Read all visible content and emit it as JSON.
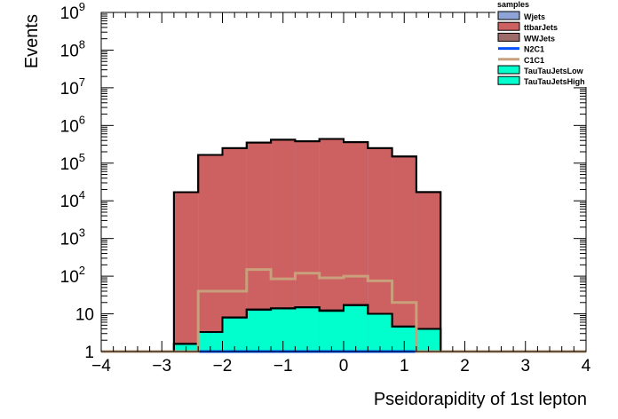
{
  "chart_data": {
    "type": "stacked-histogram",
    "xlabel": "Pseidorapidity of 1st lepton",
    "ylabel": "Events",
    "xlim": [
      -4,
      4
    ],
    "ylim": [
      1,
      1000000000
    ],
    "yscale": "log",
    "x_ticks": [
      "−4",
      "−3",
      "−2",
      "−1",
      "0",
      "1",
      "2",
      "3",
      "4"
    ],
    "y_ticks": [
      {
        "value": 1,
        "base": "1",
        "exp": ""
      },
      {
        "value": 10,
        "base": "10",
        "exp": ""
      },
      {
        "value": 100,
        "base": "10",
        "exp": "2"
      },
      {
        "value": 1000,
        "base": "10",
        "exp": "3"
      },
      {
        "value": 10000,
        "base": "10",
        "exp": "4"
      },
      {
        "value": 100000,
        "base": "10",
        "exp": "5"
      },
      {
        "value": 1000000,
        "base": "10",
        "exp": "6"
      },
      {
        "value": 10000000,
        "base": "10",
        "exp": "7"
      },
      {
        "value": 100000000,
        "base": "10",
        "exp": "8"
      },
      {
        "value": 1000000000,
        "base": "10",
        "exp": "9"
      }
    ],
    "bin_edges": [
      -4,
      -3.6,
      -3.2,
      -2.8,
      -2.4,
      -2.0,
      -1.6,
      -1.2,
      -0.8,
      -0.4,
      0,
      0.4,
      0.8,
      1.2,
      1.6,
      2.0,
      2.4,
      2.8,
      3.2,
      3.6,
      4
    ],
    "stacked_series": [
      {
        "name": "TauTauJetsHigh",
        "color": "#00ffcc",
        "values": [
          0,
          0,
          0,
          1.6,
          3.3,
          8,
          13,
          14,
          15,
          12,
          17,
          10,
          4.6,
          4,
          1,
          0,
          0,
          0,
          0,
          0
        ]
      },
      {
        "name": "TauTauJetsLow",
        "color": "#00ffcc",
        "values": [
          0,
          0,
          0,
          0,
          0,
          0,
          0,
          0,
          0,
          0.3,
          0.1,
          0,
          0,
          0,
          0,
          0,
          0,
          0,
          0,
          0
        ]
      },
      {
        "name": "WWJets",
        "color": "#9e6b6b",
        "values": [
          0,
          0,
          0,
          0,
          0,
          0,
          0,
          0,
          0,
          0,
          0,
          0,
          0,
          0,
          0,
          0,
          0,
          0,
          0,
          0
        ]
      },
      {
        "name": "ttbarJets",
        "color": "#cd6060",
        "values": [
          0,
          0,
          0,
          17000,
          165000,
          250000,
          350000,
          420000,
          380000,
          440000,
          360000,
          250000,
          150000,
          17000,
          0,
          0,
          0,
          0,
          0,
          0
        ]
      },
      {
        "name": "Wjets",
        "color": "#8ea3d6",
        "values": [
          0,
          0,
          0,
          0,
          0,
          0,
          0,
          0,
          0,
          0,
          0,
          0,
          0,
          0,
          0,
          0,
          0,
          0,
          0,
          0
        ]
      }
    ],
    "line_series": [
      {
        "name": "N2C1",
        "color": "#0050ff",
        "values": [
          0,
          0,
          0,
          0,
          1,
          1,
          1,
          1,
          1,
          1,
          1,
          1,
          1,
          1,
          0,
          0,
          0,
          0,
          0,
          0
        ]
      },
      {
        "name": "C1C1",
        "color": "#c8a07c",
        "values": [
          1,
          1,
          1,
          1,
          40,
          40,
          150,
          85,
          120,
          90,
          100,
          75,
          20,
          1,
          1,
          1,
          1,
          1,
          1,
          1
        ]
      }
    ],
    "legend": {
      "title": "samples",
      "placement": "top-right",
      "entries": [
        {
          "label": "Wjets",
          "style": "box",
          "color": "#8ea3d6"
        },
        {
          "label": "ttbarJets",
          "style": "box",
          "color": "#cd6060"
        },
        {
          "label": "WWJets",
          "style": "box",
          "color": "#9e6b6b"
        },
        {
          "label": "N2C1",
          "style": "line",
          "color": "#0050ff"
        },
        {
          "label": "C1C1",
          "style": "line",
          "color": "#c8a07c"
        },
        {
          "label": "TauTauJetsLow",
          "style": "box",
          "color": "#00ffcc"
        },
        {
          "label": "TauTauJetsHigh",
          "style": "box",
          "color": "#00ffcc"
        }
      ]
    },
    "grid": false
  }
}
